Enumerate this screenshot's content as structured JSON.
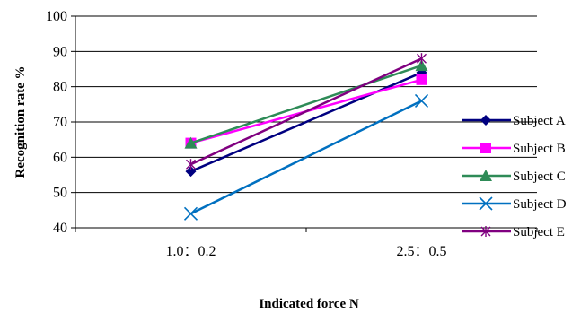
{
  "chart_data": {
    "type": "line",
    "title": "",
    "xlabel": "Indicated force N",
    "ylabel": "Recognition rate %",
    "categories": [
      "1.0：0.2",
      "2.5：0.5"
    ],
    "ylim": [
      40,
      100
    ],
    "yticks": [
      "40",
      "50",
      "60",
      "70",
      "80",
      "90",
      "100"
    ],
    "grid": "horizontal",
    "legend_position": "right",
    "series": [
      {
        "name": "Subject A",
        "values": [
          56,
          84
        ],
        "color": "#000080",
        "marker": "diamond"
      },
      {
        "name": "Subject B",
        "values": [
          64,
          82
        ],
        "color": "#ff00ff",
        "marker": "square"
      },
      {
        "name": "Subject C",
        "values": [
          64,
          86
        ],
        "color": "#2e8b57",
        "marker": "triangle"
      },
      {
        "name": "Subject D",
        "values": [
          44,
          76
        ],
        "color": "#0070c0",
        "marker": "x"
      },
      {
        "name": "Subject E",
        "values": [
          58,
          88
        ],
        "color": "#800080",
        "marker": "star"
      }
    ]
  }
}
